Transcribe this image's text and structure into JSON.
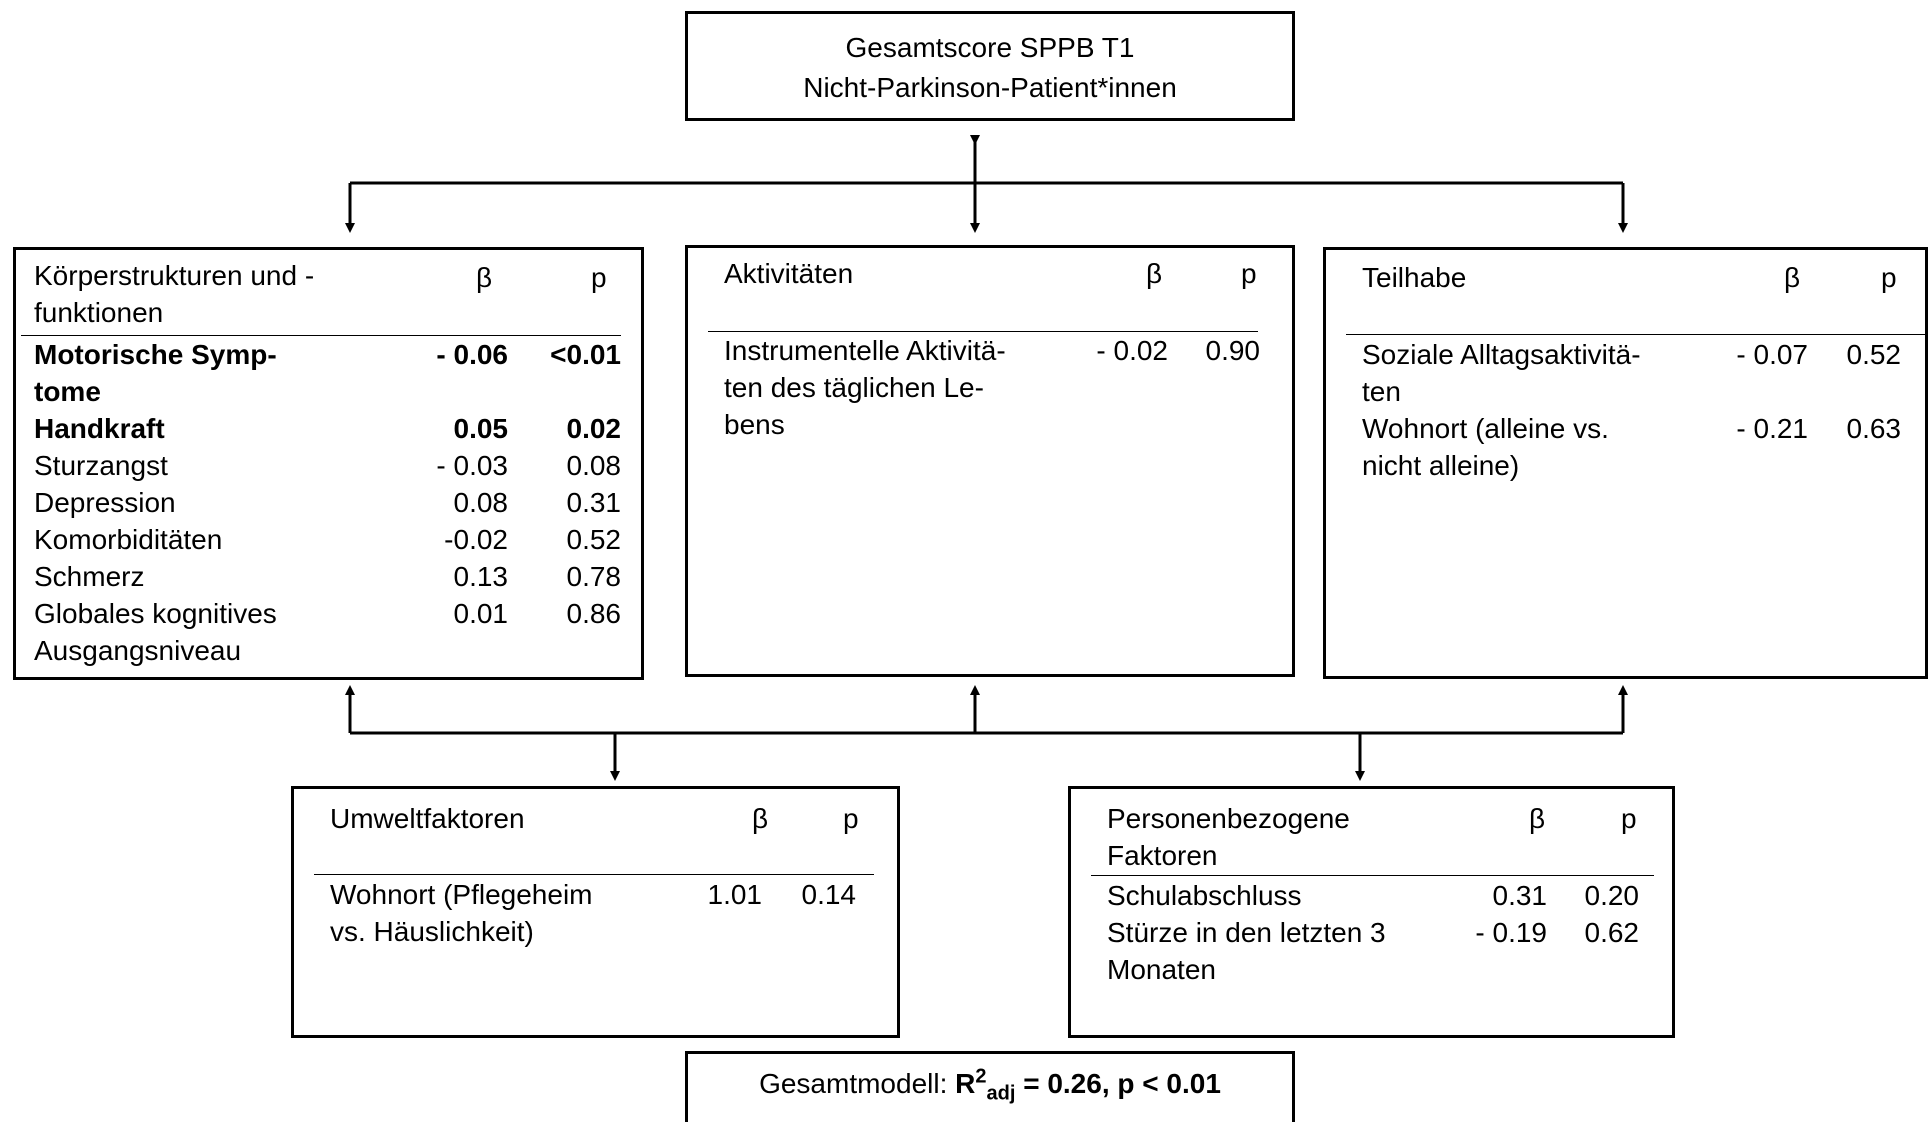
{
  "top": {
    "line1": "Gesamtscore SPPB T1",
    "line2": "Nicht-Parkinson-Patient*innen"
  },
  "koerper": {
    "title_line1": "Körperstrukturen und -",
    "title_line2": "funktionen",
    "beta_label": "β",
    "p_label": "p",
    "rows": [
      {
        "l1": "Motorische Symp-",
        "l2": "tome",
        "beta": "- 0.06",
        "p": "<0.01",
        "bold": true
      },
      {
        "l1": "Handkraft",
        "beta": "0.05",
        "p": "0.02",
        "bold": true
      },
      {
        "l1": "Sturzangst",
        "beta": "- 0.03",
        "p": "0.08"
      },
      {
        "l1": "Depression",
        "beta": "0.08",
        "p": "0.31"
      },
      {
        "l1": "Komorbiditäten",
        "beta": "-0.02",
        "p": "0.52"
      },
      {
        "l1": "Schmerz",
        "beta": "0.13",
        "p": "0.78"
      },
      {
        "l1": "Globales kognitives",
        "l2": "Ausgangsniveau",
        "beta": "0.01",
        "p": "0.86"
      }
    ]
  },
  "aktiv": {
    "title": "Aktivitäten",
    "beta_label": "β",
    "p_label": "p",
    "rows": [
      {
        "l1": "Instrumentelle Aktivitä-",
        "l2": "ten des täglichen Le-",
        "l3": "bens",
        "beta": "- 0.02",
        "p": "0.90"
      }
    ]
  },
  "teilhabe": {
    "title": "Teilhabe",
    "beta_label": "β",
    "p_label": "p",
    "rows": [
      {
        "l1": "Soziale Alltagsaktivitä-",
        "l2": "ten",
        "beta": "- 0.07",
        "p": "0.52"
      },
      {
        "l1": "Wohnort (alleine vs.",
        "l2": "nicht alleine)",
        "beta": "- 0.21",
        "p": "0.63"
      }
    ]
  },
  "umwelt": {
    "title": "Umweltfaktoren",
    "beta_label": "β",
    "p_label": "p",
    "rows": [
      {
        "l1": "Wohnort (Pflegeheim",
        "l2": "vs. Häuslichkeit)",
        "beta": "1.01",
        "p": "0.14"
      }
    ]
  },
  "person": {
    "title_line1": "Personenbezogene",
    "title_line2": "Faktoren",
    "beta_label": "β",
    "p_label": "p",
    "rows": [
      {
        "l1": "Schulabschluss",
        "beta": "0.31",
        "p": "0.20"
      },
      {
        "l1": "Stürze in den letzten 3",
        "l2": "Monaten",
        "beta": "- 0.19",
        "p": "0.62"
      }
    ]
  },
  "model": {
    "prefix": "Gesamtmodell: ",
    "r": "R",
    "sup": "2",
    "sub": "adj",
    "rest": " = 0.26, p < 0.01"
  }
}
